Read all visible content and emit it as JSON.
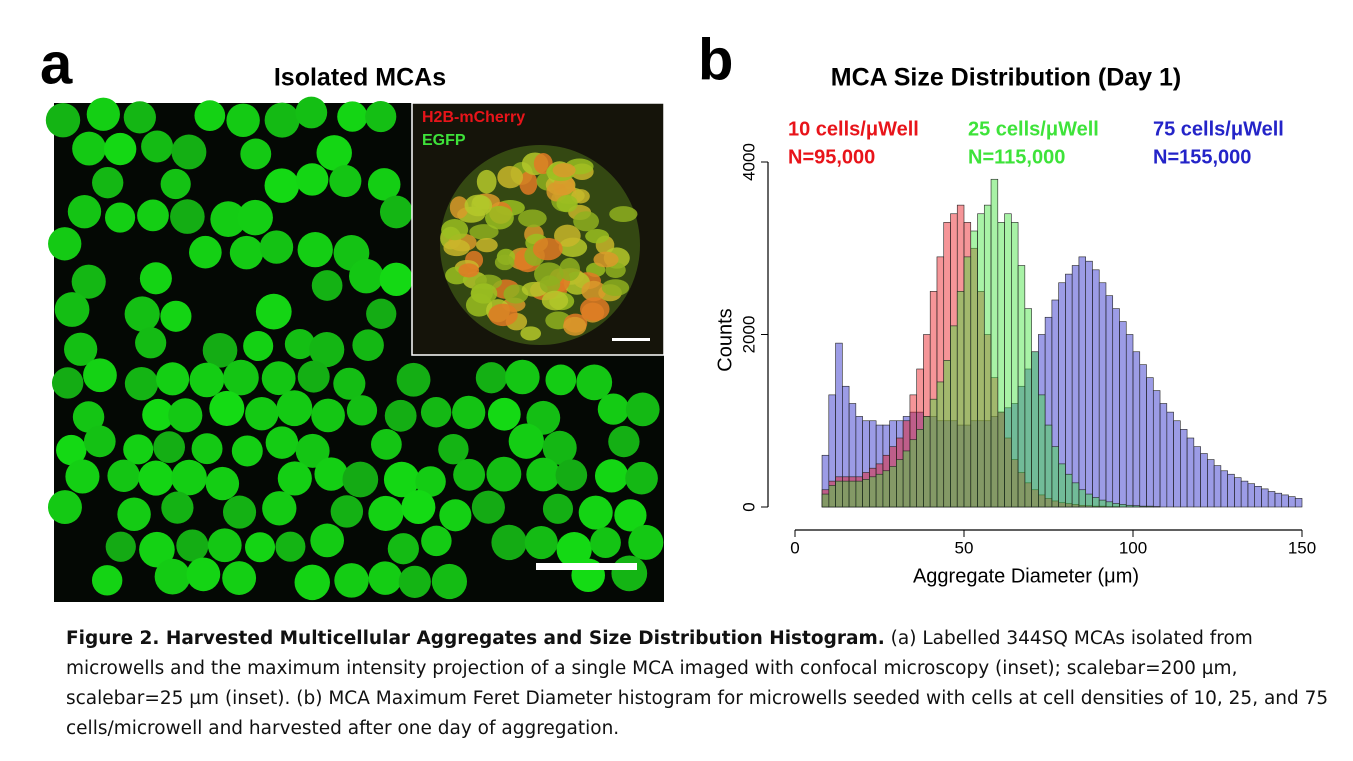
{
  "panel_a": {
    "letter": "a",
    "title": "Isolated MCAs",
    "inset_labels": [
      "H2B-mCherry",
      "EGFP"
    ]
  },
  "chart_data": {
    "type": "histogram",
    "panel_letter": "b",
    "title": "MCA Size Distribution (Day 1)",
    "xlabel": "Aggregate Diameter (μm)",
    "ylabel": "Counts",
    "bins": [
      0,
      2,
      4,
      6,
      8,
      10,
      12,
      14,
      16,
      18,
      20,
      22,
      24,
      26,
      28,
      30,
      32,
      34,
      36,
      38,
      40,
      42,
      44,
      46,
      48,
      50,
      52,
      54,
      56,
      58,
      60,
      62,
      64,
      66,
      68,
      70,
      72,
      74,
      76,
      78,
      80,
      82,
      84,
      86,
      88,
      90,
      92,
      94,
      96,
      98,
      100,
      102,
      104,
      106,
      108,
      110,
      112,
      114,
      116,
      118,
      120,
      122,
      124,
      126,
      128,
      130,
      132,
      134,
      136,
      138,
      140,
      142,
      144,
      146,
      148,
      150
    ],
    "series": [
      {
        "name": "10 cells/μWell",
        "n_label": "N=95,000",
        "color": "#e8141a",
        "values": [
          0,
          0,
          0,
          0,
          200,
          300,
          350,
          350,
          350,
          350,
          400,
          450,
          500,
          600,
          700,
          800,
          1000,
          1300,
          1600,
          2000,
          2500,
          2900,
          3300,
          3400,
          3500,
          3300,
          3000,
          2500,
          2000,
          1500,
          1100,
          800,
          550,
          400,
          280,
          200,
          140,
          100,
          70,
          50,
          40,
          30,
          20,
          15,
          10,
          10,
          5,
          5,
          0,
          0,
          0,
          0,
          0,
          0,
          0,
          0,
          0,
          0,
          0,
          0,
          0,
          0,
          0,
          0,
          0,
          0,
          0,
          0,
          0,
          0,
          0,
          0,
          0,
          0,
          0
        ]
      },
      {
        "name": "25 cells/μWell",
        "n_label": "N=115,000",
        "color": "#3ee33a",
        "values": [
          0,
          0,
          0,
          0,
          150,
          250,
          300,
          300,
          300,
          300,
          320,
          350,
          380,
          420,
          470,
          550,
          650,
          780,
          900,
          1050,
          1250,
          1450,
          1700,
          2100,
          2500,
          2900,
          3200,
          3400,
          3500,
          3800,
          3300,
          3400,
          3300,
          2800,
          2300,
          1800,
          1300,
          950,
          700,
          500,
          380,
          280,
          200,
          150,
          110,
          80,
          60,
          40,
          30,
          20,
          15,
          10,
          10,
          5,
          0,
          0,
          0,
          0,
          0,
          0,
          0,
          0,
          0,
          0,
          0,
          0,
          0,
          0,
          0,
          0,
          0,
          0,
          0,
          0,
          0
        ]
      },
      {
        "name": "75 cells/μWell",
        "n_label": "N=155,000",
        "color": "#2424c8",
        "values": [
          0,
          0,
          0,
          0,
          600,
          1300,
          1900,
          1400,
          1200,
          1050,
          1000,
          1000,
          950,
          950,
          1000,
          1000,
          1050,
          1100,
          1100,
          1050,
          1050,
          1000,
          1000,
          1000,
          950,
          950,
          1000,
          1000,
          1000,
          1050,
          1100,
          1150,
          1200,
          1400,
          1600,
          1800,
          2000,
          2200,
          2400,
          2600,
          2700,
          2800,
          2900,
          2850,
          2750,
          2600,
          2450,
          2300,
          2150,
          2000,
          1800,
          1650,
          1500,
          1350,
          1200,
          1100,
          1000,
          900,
          800,
          700,
          620,
          550,
          480,
          420,
          380,
          340,
          300,
          270,
          240,
          210,
          180,
          160,
          140,
          120,
          100
        ]
      }
    ],
    "xlim": [
      0,
      150
    ],
    "xticks": [
      0,
      50,
      100,
      150
    ],
    "ylim": [
      0,
      4000
    ],
    "yticks": [
      0,
      2000,
      4000
    ]
  },
  "caption": {
    "bold": "Figure 2.  Harvested Multicellular Aggregates and Size Distribution Histogram.",
    "text": " (a) Labelled 344SQ MCAs isolated from microwells and the maximum intensity projection of a single MCA imaged with confocal microscopy (inset); scalebar=200 µm, scalebar=25 µm (inset). (b) MCA Maximum Feret Diameter histogram for microwells seeded with cells at cell densities of 10, 25, and 75 cells/microwell and harvested after one day of aggregation."
  }
}
